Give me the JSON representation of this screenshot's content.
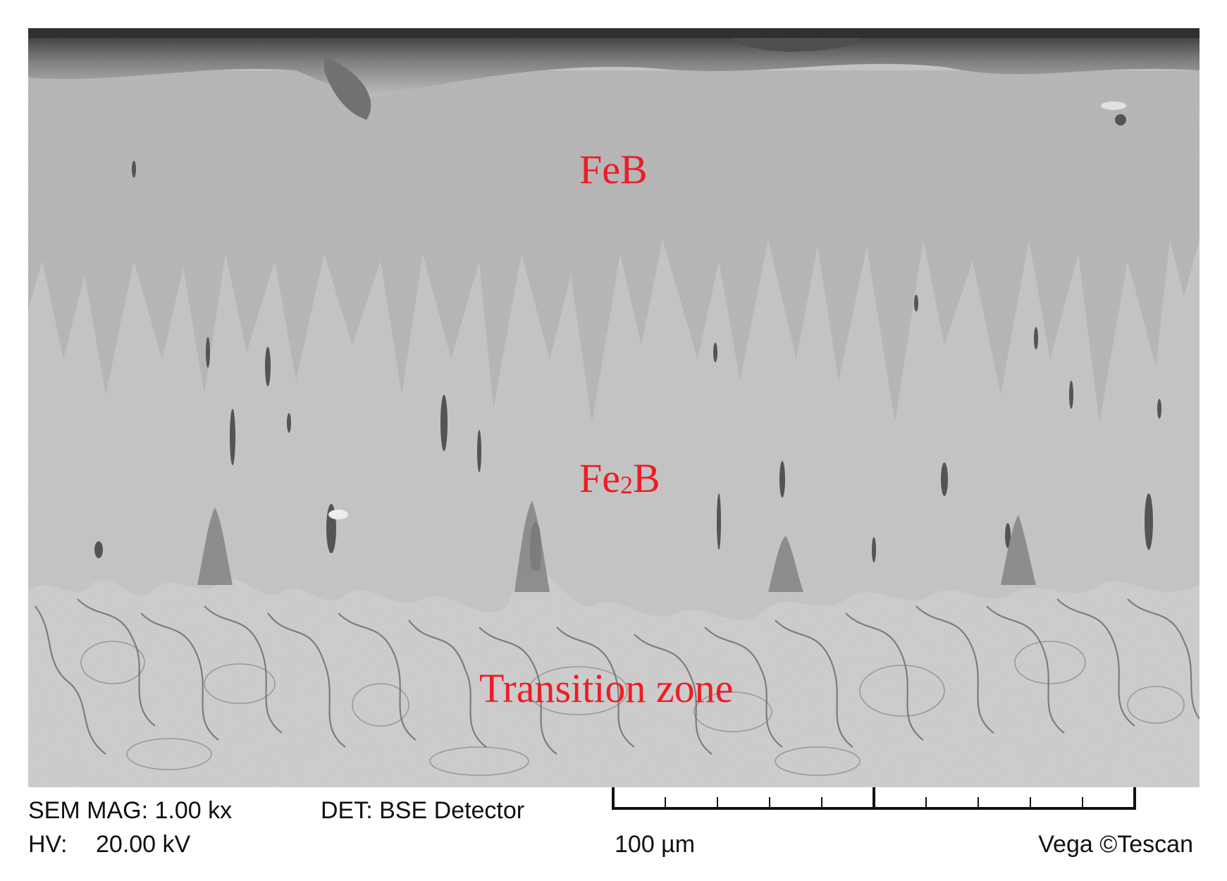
{
  "micrograph": {
    "labels": {
      "feb": "FeB",
      "fe2b_prefix": "Fe",
      "fe2b_subscript": "2",
      "fe2b_suffix": "B",
      "transition": "Transition zone"
    },
    "label_color": "#ee1c25"
  },
  "info_bar": {
    "sem_mag": "SEM MAG: 1.00 kx",
    "det": "DET: BSE Detector",
    "hv_label": "HV:",
    "hv_value": "20.00 kV",
    "scale": "100 µm",
    "brand": "Vega ©Tescan"
  }
}
